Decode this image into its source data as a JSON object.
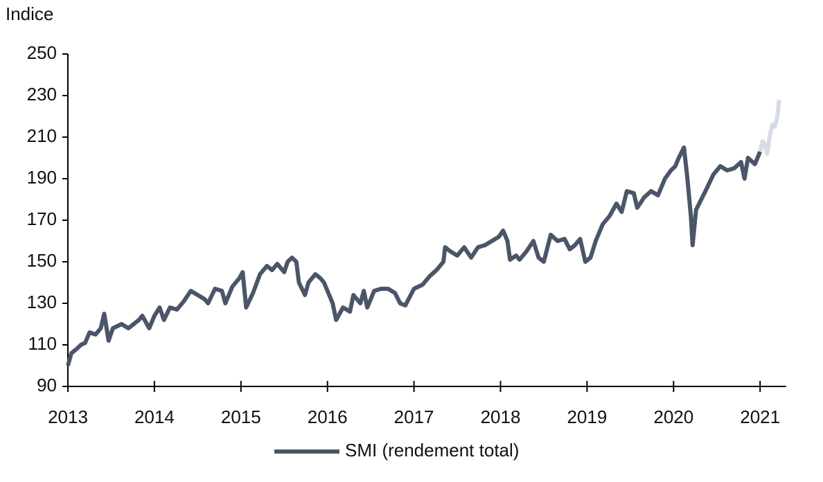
{
  "chart_data": {
    "type": "line",
    "y_axis_label": "Indice",
    "xlim": [
      2013,
      2021.3
    ],
    "xticks": [
      2013,
      2014,
      2015,
      2016,
      2017,
      2018,
      2019,
      2020,
      2021
    ],
    "ylim": [
      90,
      250
    ],
    "yticks": [
      90,
      110,
      130,
      150,
      170,
      190,
      210,
      230,
      250
    ],
    "grid": false,
    "legend": "bottom",
    "series": [
      {
        "name": "SMI (rendement total)",
        "color": "#4a5668",
        "x": [
          2013.0,
          2013.04,
          2013.1,
          2013.15,
          2013.2,
          2013.25,
          2013.32,
          2013.38,
          2013.42,
          2013.47,
          2013.52,
          2013.62,
          2013.7,
          2013.82,
          2013.86,
          2013.94,
          2014.0,
          2014.06,
          2014.11,
          2014.18,
          2014.26,
          2014.34,
          2014.42,
          2014.5,
          2014.58,
          2014.62,
          2014.7,
          2014.78,
          2014.82,
          2014.9,
          2014.98,
          2015.02,
          2015.06,
          2015.14,
          2015.22,
          2015.3,
          2015.36,
          2015.42,
          2015.5,
          2015.54,
          2015.59,
          2015.64,
          2015.67,
          2015.74,
          2015.78,
          2015.86,
          2015.92,
          2015.96,
          2016.02,
          2016.06,
          2016.1,
          2016.18,
          2016.26,
          2016.3,
          2016.38,
          2016.42,
          2016.46,
          2016.54,
          2016.62,
          2016.7,
          2016.78,
          2016.84,
          2016.9,
          2017.0,
          2017.1,
          2017.18,
          2017.26,
          2017.34,
          2017.36,
          2017.42,
          2017.5,
          2017.58,
          2017.66,
          2017.74,
          2017.82,
          2017.9,
          2017.98,
          2018.03,
          2018.08,
          2018.11,
          2018.18,
          2018.22,
          2018.3,
          2018.38,
          2018.44,
          2018.5,
          2018.58,
          2018.66,
          2018.74,
          2018.8,
          2018.86,
          2018.92,
          2018.98,
          2019.04,
          2019.1,
          2019.18,
          2019.26,
          2019.34,
          2019.4,
          2019.46,
          2019.54,
          2019.58,
          2019.66,
          2019.74,
          2019.82,
          2019.9,
          2019.97,
          2020.02,
          2020.06,
          2020.12,
          2020.16,
          2020.2,
          2020.22,
          2020.26,
          2020.32,
          2020.38,
          2020.46,
          2020.54,
          2020.62,
          2020.7,
          2020.78,
          2020.82,
          2020.86,
          2020.94,
          2021.0
        ],
        "values": [
          100,
          106,
          108,
          110,
          111,
          116,
          115,
          118,
          125,
          112,
          118,
          120,
          118,
          122,
          124,
          118,
          124,
          128,
          122,
          128,
          127,
          131,
          136,
          134,
          132,
          130,
          137,
          136,
          130,
          138,
          142,
          145,
          128,
          135,
          144,
          148,
          146,
          149,
          145,
          150,
          152,
          150,
          140,
          134,
          140,
          144,
          142,
          140,
          134,
          130,
          122,
          128,
          126,
          134,
          130,
          136,
          128,
          136,
          137,
          137,
          135,
          130,
          129,
          137,
          139,
          143,
          146,
          150,
          157,
          155,
          153,
          157,
          152,
          157,
          158,
          160,
          162,
          165,
          160,
          151,
          153,
          151,
          155,
          160,
          152,
          150,
          163,
          160,
          161,
          156,
          158,
          161,
          150,
          152,
          160,
          168,
          172,
          178,
          174,
          184,
          183,
          176,
          181,
          184,
          182,
          190,
          194,
          196,
          200,
          205,
          190,
          172,
          158,
          175,
          180,
          185,
          192,
          196,
          194,
          195,
          198,
          190,
          200,
          197,
          203
        ]
      },
      {
        "color": "#d5dce6",
        "x": [
          2021.0,
          2021.03,
          2021.06,
          2021.08,
          2021.11,
          2021.14,
          2021.17,
          2021.2,
          2021.22
        ],
        "values": [
          203,
          208,
          206,
          202,
          210,
          216,
          215,
          220,
          228
        ]
      }
    ]
  }
}
